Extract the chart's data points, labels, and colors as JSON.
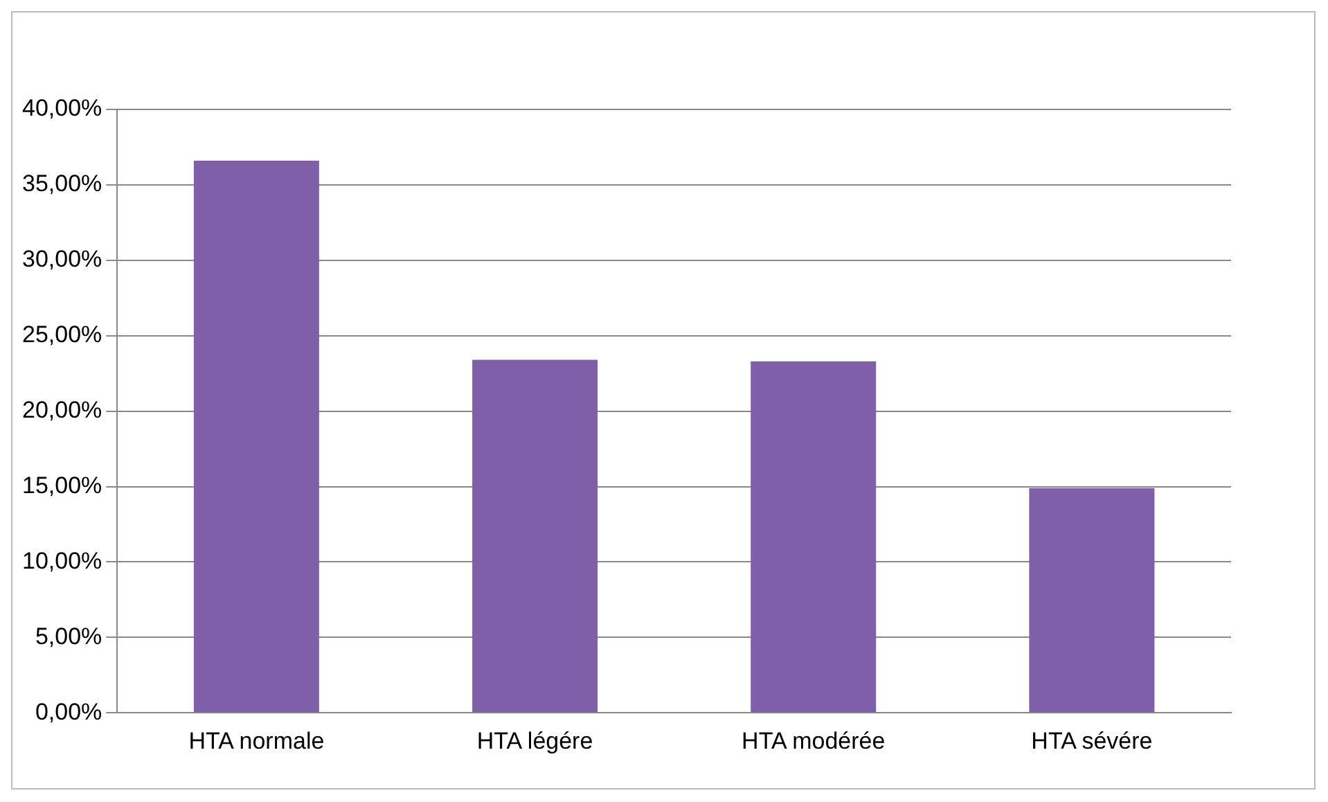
{
  "chart_data": {
    "type": "bar",
    "categories": [
      "HTA normale",
      "HTA légére",
      "HTA modérée",
      "HTA sévére"
    ],
    "values": [
      36.6,
      23.4,
      23.3,
      14.9
    ],
    "color": "#7f5fa8",
    "ylim": [
      0,
      40
    ],
    "yticks": [
      {
        "value": 0,
        "label": "0,00%"
      },
      {
        "value": 5,
        "label": "5,00%"
      },
      {
        "value": 10,
        "label": "10,00%"
      },
      {
        "value": 15,
        "label": "15,00%"
      },
      {
        "value": 20,
        "label": "20,00%"
      },
      {
        "value": 25,
        "label": "25,00%"
      },
      {
        "value": 30,
        "label": "30,00%"
      },
      {
        "value": 35,
        "label": "35,00%"
      },
      {
        "value": 40,
        "label": "40,00%"
      }
    ],
    "grid": "y"
  }
}
